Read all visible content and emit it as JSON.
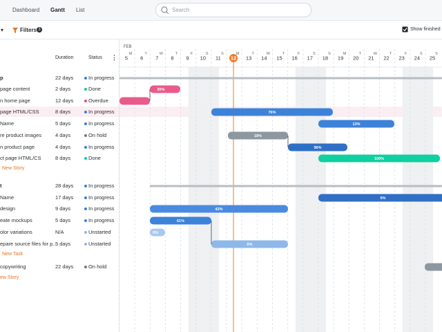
{
  "nav": {
    "tabs": [
      "Dashboard",
      "Gantt",
      "List"
    ],
    "active_tab": 1,
    "search": "Search"
  },
  "toolbar": {
    "filters": "Filters",
    "filter_count": "3",
    "show_finished": "Show finished"
  },
  "table": {
    "headers": [
      "Duration",
      "Status"
    ],
    "rows": [
      {
        "name": "p",
        "duration": "22 days",
        "status": "In progress",
        "status_color": "#3b7dd8",
        "bold": true
      },
      {
        "name": "page content",
        "duration": "2 days",
        "status": "Done",
        "status_color": "#12c99b",
        "progress": "20%"
      },
      {
        "name": "n home page",
        "duration": "12 days",
        "status": "Overdue",
        "status_color": "#e84a7f"
      },
      {
        "name": "page HTML/CSS",
        "duration": "8 days",
        "status": "In progress",
        "status_color": "#3b7dd8",
        "progress": "76%",
        "highlight": true
      },
      {
        "name": "Name",
        "duration": "5 days",
        "status": "In progress",
        "status_color": "#3b7dd8",
        "progress": "13%"
      },
      {
        "name": "re product images",
        "duration": "4 days",
        "status": "On hold",
        "status_color": "#6b7b85",
        "progress": "18%"
      },
      {
        "name": "n product page",
        "duration": "4 days",
        "status": "In progress",
        "status_color": "#3b7dd8",
        "progress": "96%"
      },
      {
        "name": "ct page HTML/CS",
        "duration": "8 days",
        "status": "Done",
        "status_color": "#12c99b",
        "progress": "100%"
      },
      {
        "add": "New Story"
      },
      {
        "name": "t",
        "duration": "28 days",
        "status": "In progress",
        "status_color": "#3b7dd8",
        "bold": true
      },
      {
        "name": "Name",
        "duration": "17 days",
        "status": "In progress",
        "status_color": "#3b7dd8",
        "progress": "9%"
      },
      {
        "name": "design",
        "duration": "9 days",
        "status": "In progress",
        "status_color": "#3b7dd8",
        "progress": "43%"
      },
      {
        "name": "eate mockups",
        "duration": "5 days",
        "status": "In progress",
        "status_color": "#3b7dd8",
        "progress": "61%"
      },
      {
        "name": "olor variations",
        "duration": "N/A",
        "status": "Unstarted",
        "status_color": "#8fb8ea",
        "progress": "0%"
      },
      {
        "name": "epare source files for p...",
        "duration": "5 days",
        "status": "Unstarted",
        "status_color": "#8fb8ea",
        "progress": "0%"
      },
      {
        "add": "New Task"
      },
      {
        "name": "copywriting",
        "duration": "22 days",
        "status": "On hold",
        "status_color": "#6b7b85"
      },
      {
        "add": "ew Story"
      }
    ]
  },
  "timeline": {
    "month": "FEB",
    "days": [
      5,
      6,
      7,
      8,
      9,
      10,
      11,
      12,
      13,
      14,
      15,
      16,
      17,
      18,
      19,
      20,
      21,
      22,
      23,
      24,
      25
    ],
    "weekdays": [
      "M",
      "T",
      "W",
      "T",
      "F",
      "S",
      "S",
      "M",
      "T",
      "W",
      "T",
      "F",
      "S",
      "S",
      "M",
      "T",
      "W",
      "T",
      "F",
      "S",
      "S"
    ],
    "today": 12
  }
}
